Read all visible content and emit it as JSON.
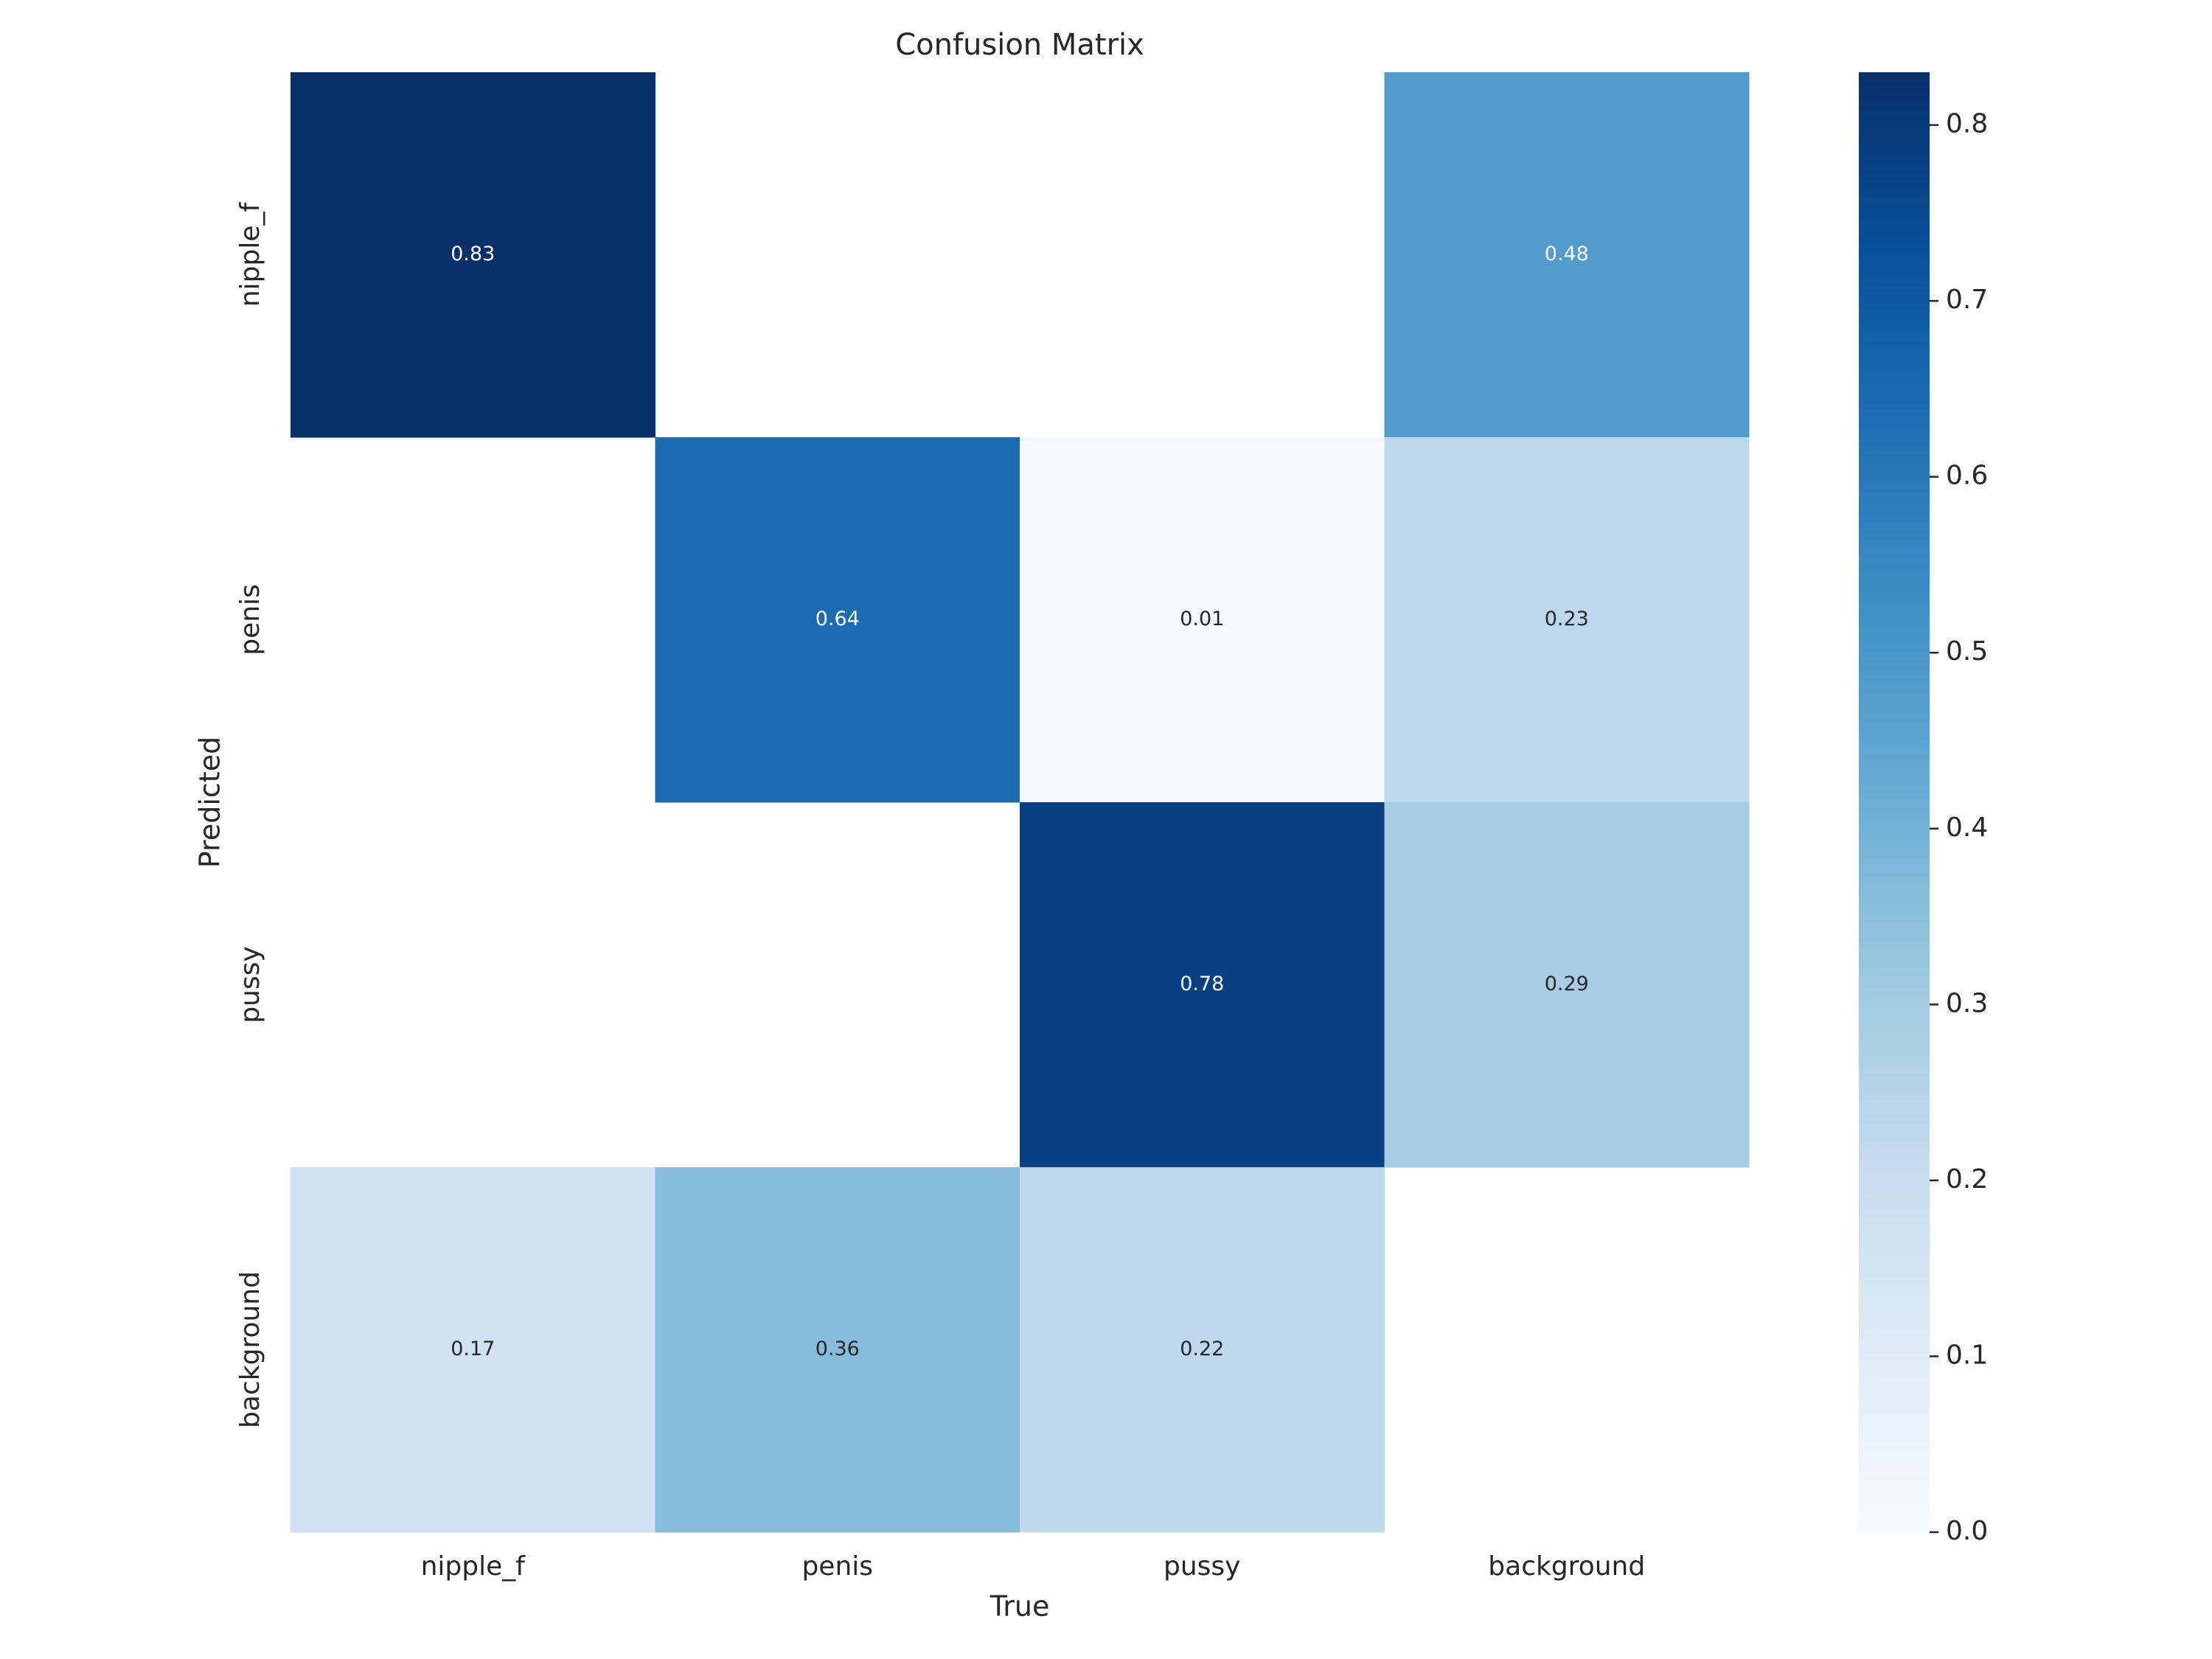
{
  "chart_data": {
    "type": "heatmap",
    "title": "Confusion Matrix",
    "x_label": "True",
    "y_label": "Predicted",
    "x_categories": [
      "nipple_f",
      "penis",
      "pussy",
      "background"
    ],
    "y_categories": [
      "nipple_f",
      "penis",
      "pussy",
      "background"
    ],
    "values": [
      [
        0.83,
        null,
        null,
        0.48
      ],
      [
        null,
        0.64,
        0.01,
        0.23
      ],
      [
        null,
        null,
        0.78,
        0.29
      ],
      [
        0.17,
        0.36,
        0.22,
        null
      ]
    ],
    "colormap": "Blues",
    "colorbar": {
      "lim": [
        0,
        0.83
      ],
      "ticks": [
        {
          "value": 0,
          "label": "0.0"
        },
        0.1,
        0.2,
        0.3,
        0.4,
        0.5,
        0.6,
        0.7,
        0.8
      ]
    }
  }
}
